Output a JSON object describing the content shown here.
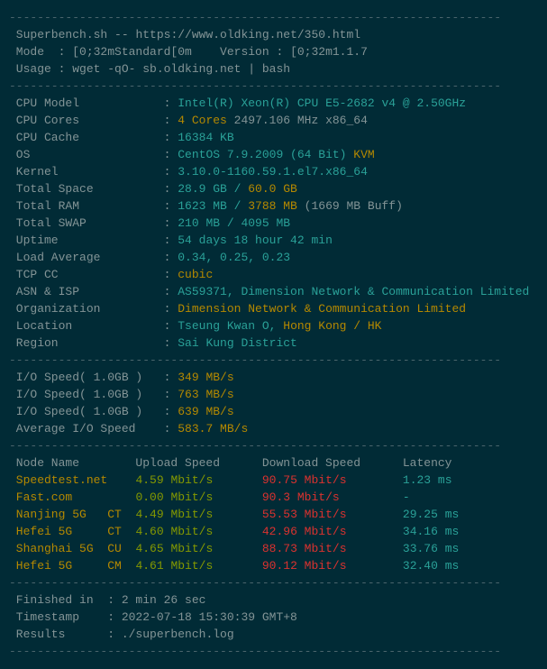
{
  "divider": "----------------------------------------------------------------------",
  "header": {
    "line1a": " Superbench.sh -- ",
    "line1b": "https://www.oldking.net/350.html",
    "mode_left": " Mode  : [0;32mStandard[0m    Version : ",
    "mode_right": "[0;32m1.1.7",
    "usage": " Usage : wget -qO- sb.oldking.net | bash"
  },
  "sys": {
    "rows": [
      {
        "label": " CPU Model            :",
        "c": " Intel(R) Xeon(R) CPU E5-2682 v4 @ 2.50GHz",
        "y": ""
      },
      {
        "label": " CPU Cores            :",
        "c": "",
        "y": " 4 Cores",
        "g": " 2497.106 MHz x86_64"
      },
      {
        "label": " CPU Cache            :",
        "c": " 16384 KB",
        "y": ""
      },
      {
        "label": " OS                   :",
        "c": " CentOS 7.9.2009 (64 Bit)",
        "y": " KVM"
      },
      {
        "label": " Kernel               :",
        "c": " 3.10.0-1160.59.1.el7.x86_64",
        "y": ""
      },
      {
        "label": " Total Space          :",
        "c": " 28.9 GB /",
        "y": " 60.0 GB"
      },
      {
        "label": " Total RAM            :",
        "c": " 1623 MB /",
        "y": " 3788 MB",
        "g": " (1669 MB Buff)"
      },
      {
        "label": " Total SWAP           :",
        "c": " 210 MB / 4095 MB",
        "y": ""
      },
      {
        "label": " Uptime               :",
        "c": " 54 days 18 hour 42 min",
        "y": ""
      },
      {
        "label": " Load Average         :",
        "c": " 0.34, 0.25, 0.23",
        "y": ""
      },
      {
        "label": " TCP CC               :",
        "c": "",
        "y": " cubic"
      },
      {
        "label": " ASN & ISP            :",
        "c": " AS59371, Dimension Network & Communication Limited",
        "y": ""
      },
      {
        "label": " Organization         :",
        "c": "",
        "y": " Dimension Network & Communication Limited"
      },
      {
        "label": " Location             :",
        "c": " Tseung Kwan O,",
        "y": " Hong Kong / HK"
      },
      {
        "label": " Region               :",
        "c": " Sai Kung District",
        "y": ""
      }
    ]
  },
  "io": {
    "rows": [
      {
        "label": " I/O Speed( 1.0GB )   :",
        "val": " 349 MB/s"
      },
      {
        "label": " I/O Speed( 1.0GB )   :",
        "val": " 763 MB/s"
      },
      {
        "label": " I/O Speed( 1.0GB )   :",
        "val": " 639 MB/s"
      },
      {
        "label": " Average I/O Speed    :",
        "val": " 583.7 MB/s"
      }
    ]
  },
  "speed": {
    "header": " Node Name        Upload Speed      Download Speed      Latency",
    "rows": [
      {
        "n": " Speedtest.net    ",
        "u": "4.59 Mbit/s       ",
        "d": "90.75 Mbit/s        ",
        "l": "1.23 ms"
      },
      {
        "n": " Fast.com         ",
        "u": "0.00 Mbit/s       ",
        "d": "90.3 Mbit/s         ",
        "l": "-"
      },
      {
        "n": " Nanjing 5G   CT  ",
        "u": "4.49 Mbit/s       ",
        "d": "55.53 Mbit/s        ",
        "l": "29.25 ms"
      },
      {
        "n": " Hefei 5G     CT  ",
        "u": "4.60 Mbit/s       ",
        "d": "42.96 Mbit/s        ",
        "l": "34.16 ms"
      },
      {
        "n": " Shanghai 5G  CU  ",
        "u": "4.65 Mbit/s       ",
        "d": "88.73 Mbit/s        ",
        "l": "33.76 ms"
      },
      {
        "n": " Hefei 5G     CM  ",
        "u": "4.61 Mbit/s       ",
        "d": "90.12 Mbit/s        ",
        "l": "32.40 ms"
      }
    ]
  },
  "footer": {
    "finished": " Finished in  : 2 min 26 sec",
    "timestamp_label": " Timestamp    : ",
    "timestamp_val": "2022-07-18 15:30:39 GMT+8",
    "results_label": " Results      : ",
    "results_val": "./superbench.log"
  }
}
